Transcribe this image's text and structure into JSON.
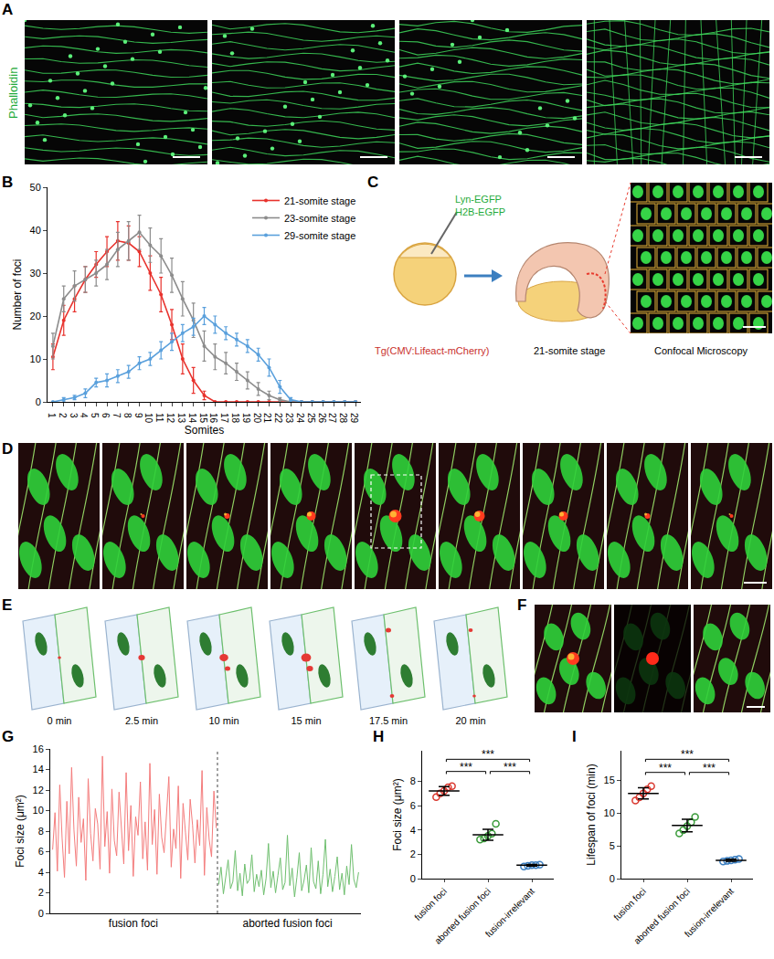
{
  "figure": {
    "panel_labels": [
      "A",
      "B",
      "C",
      "D",
      "E",
      "F",
      "G",
      "H",
      "I"
    ],
    "A": {
      "stain": "Phalloidin"
    },
    "C": {
      "injected": [
        "Lyn-EGFP",
        "H2B-EGFP"
      ],
      "line": "Tg(CMV:Lifeact-mCherry)",
      "stage": "21-somite stage",
      "method": "Confocal Microscopy"
    },
    "E": {
      "times": [
        "0 min",
        "2.5 min",
        "10 min",
        "15 min",
        "17.5 min",
        "20 min"
      ]
    }
  },
  "chart_data": [
    {
      "type": "line",
      "x_label": "Somites",
      "y_label": "Number of foci",
      "x": [
        1,
        2,
        3,
        4,
        5,
        6,
        7,
        8,
        9,
        10,
        11,
        12,
        13,
        14,
        15,
        16,
        17,
        18,
        19,
        20,
        21,
        22,
        23,
        24,
        25,
        26,
        27,
        28,
        29
      ],
      "xlim": [
        0.5,
        29.5
      ],
      "xticks": [
        1,
        2,
        3,
        4,
        5,
        6,
        7,
        8,
        9,
        10,
        11,
        12,
        13,
        14,
        15,
        16,
        17,
        18,
        19,
        20,
        21,
        22,
        23,
        24,
        25,
        26,
        27,
        28,
        29
      ],
      "ylim": [
        0,
        50
      ],
      "yticks": [
        0,
        10,
        20,
        30,
        40,
        50
      ],
      "legend": "top right",
      "marker": "circle",
      "series": [
        {
          "name": "21-somite stage",
          "color": "#e8322d",
          "values": [
            10.5,
            19,
            24,
            28.5,
            32,
            35,
            37.5,
            37,
            35,
            30,
            25,
            18,
            10,
            5,
            1.5,
            0,
            0,
            0,
            0,
            0,
            0,
            0,
            0,
            0,
            0,
            0,
            0,
            0,
            0
          ],
          "error": [
            3,
            3.5,
            3,
            3,
            3,
            3.5,
            4.5,
            4,
            3.5,
            4,
            4,
            3.5,
            3.5,
            3,
            1,
            0,
            0,
            0,
            0,
            0,
            0,
            0,
            0,
            0,
            0,
            0,
            0,
            0,
            0
          ]
        },
        {
          "name": "23-somite stage",
          "color": "#8c8c8c",
          "values": [
            13,
            24,
            27,
            28.5,
            30,
            32,
            35.5,
            37.5,
            39.5,
            36.5,
            34,
            29.5,
            24,
            19,
            13,
            10.5,
            9,
            7,
            5,
            3,
            1.5,
            0.5,
            0,
            0,
            0,
            0,
            0,
            0,
            0
          ],
          "error": [
            3,
            3,
            3.5,
            3,
            3,
            3.5,
            4,
            4.5,
            4,
            4,
            4,
            4,
            4,
            4,
            3.5,
            3,
            2.5,
            2,
            2,
            1.5,
            1,
            0.5,
            0,
            0,
            0,
            0,
            0,
            0,
            0
          ]
        },
        {
          "name": "29-somite stage",
          "color": "#5aa0dc",
          "values": [
            0,
            0.5,
            1,
            2,
            4.5,
            5,
            6,
            7,
            9,
            10,
            12,
            14,
            16,
            17.5,
            20,
            18,
            16,
            14.5,
            13,
            11,
            8,
            3.5,
            0.5,
            0,
            0,
            0,
            0,
            0,
            0
          ],
          "error": [
            0,
            0.5,
            0.5,
            1,
            1,
            1.5,
            1.5,
            1.5,
            1.5,
            1.5,
            2,
            2,
            2,
            2,
            2,
            2,
            1.5,
            1.5,
            1.5,
            1.5,
            2,
            1.5,
            0.5,
            0,
            0,
            0,
            0,
            0,
            0
          ]
        }
      ]
    },
    {
      "type": "line",
      "y_label": "Foci size (μm²)",
      "xlim": [
        0,
        131
      ],
      "xticks": [
        {
          "value": 35,
          "label": "fusion foci"
        },
        {
          "value": 100,
          "label": "aborted fusion foci"
        }
      ],
      "ylim": [
        0,
        16
      ],
      "yticks": [
        0,
        2,
        4,
        6,
        8,
        10,
        12,
        14,
        16
      ],
      "series": [
        {
          "name": "fusion foci",
          "color": "#f47c7c",
          "x": [
            1,
            2,
            3,
            4,
            5,
            6,
            7,
            8,
            9,
            10,
            11,
            12,
            13,
            14,
            15,
            16,
            17,
            18,
            19,
            20,
            21,
            22,
            23,
            24,
            25,
            26,
            27,
            28,
            29,
            30,
            31,
            32,
            33,
            34,
            35,
            36,
            37,
            38,
            39,
            40,
            41,
            42,
            43,
            44,
            45,
            46,
            47,
            48,
            49,
            50,
            51,
            52,
            53,
            54,
            55,
            56,
            57,
            58,
            59,
            60,
            61,
            62,
            63,
            64,
            65,
            66,
            67,
            68,
            69,
            70
          ],
          "values": [
            6.2,
            9.8,
            4.1,
            12.5,
            7.3,
            3.5,
            10.9,
            5.8,
            14.2,
            8.1,
            4.6,
            11.3,
            6.9,
            9.2,
            3.2,
            13.1,
            7.8,
            5.1,
            10.2,
            8.7,
            4.3,
            15.3,
            6.5,
            9.9,
            3.9,
            12.1,
            7.1,
            5.6,
            11.8,
            8.4,
            4.8,
            13.7,
            6.1,
            10.5,
            3.6,
            9.4,
            7.6,
            12.8,
            5.3,
            8.9,
            4.2,
            14.6,
            6.7,
            10.1,
            3.8,
            11.6,
            7.4,
            5.9,
            9.6,
            13.3,
            4.5,
            8.2,
            6.3,
            12.4,
            3.4,
            10.7,
            7.9,
            5.2,
            11.1,
            8.6,
            4.9,
            9.1,
            6.6,
            13.9,
            3.7,
            10.3,
            7.2,
            5.5,
            11.9,
            8.3
          ]
        },
        {
          "name": "aborted fusion foci",
          "color": "#6fbf6f",
          "x": [
            71,
            72,
            73,
            74,
            75,
            76,
            77,
            78,
            79,
            80,
            81,
            82,
            83,
            84,
            85,
            86,
            87,
            88,
            89,
            90,
            91,
            92,
            93,
            94,
            95,
            96,
            97,
            98,
            99,
            100,
            101,
            102,
            103,
            104,
            105,
            106,
            107,
            108,
            109,
            110,
            111,
            112,
            113,
            114,
            115,
            116,
            117,
            118,
            119,
            120,
            121,
            122,
            123,
            124,
            125,
            126,
            127,
            128,
            129,
            130
          ],
          "values": [
            2.8,
            4.5,
            1.9,
            3.6,
            5.2,
            2.4,
            3.1,
            6.1,
            2.2,
            3.9,
            1.7,
            4.8,
            2.9,
            3.3,
            5.7,
            2.1,
            3.8,
            2.6,
            4.2,
            1.8,
            3.4,
            6.8,
            2.5,
            4.1,
            2.0,
            3.7,
            5.4,
            2.3,
            3.0,
            7.6,
            2.7,
            4.4,
            1.6,
            3.5,
            5.9,
            2.2,
            3.2,
            4.7,
            2.0,
            6.4,
            3.1,
            2.4,
            5.1,
            1.9,
            3.8,
            7.2,
            2.6,
            4.3,
            2.1,
            3.6,
            5.5,
            2.3,
            3.9,
            1.8,
            4.6,
            2.8,
            6.7,
            3.3,
            2.5,
            4.0
          ]
        }
      ]
    },
    {
      "type": "dot",
      "y_label": "Foci size (μm²)",
      "categories": [
        "fusion foci",
        "aborted fusion foci",
        "fusion-irrelevant"
      ],
      "colors": [
        "#d9382f",
        "#3a9b3a",
        "#3c7fc0"
      ],
      "points": [
        [
          6.7,
          7.0,
          7.2,
          7.5,
          7.6
        ],
        [
          3.2,
          3.3,
          3.5,
          3.7,
          4.5
        ],
        [
          1.0,
          1.05,
          1.1,
          1.1,
          1.15
        ]
      ],
      "mean": [
        7.2,
        3.6,
        1.1
      ],
      "sd": [
        0.35,
        0.45,
        0.06
      ],
      "ylim": [
        0,
        10.5
      ],
      "yticks": [
        0,
        2,
        4,
        6,
        8
      ],
      "significance": [
        {
          "pair": [
            0,
            1
          ],
          "y": 8.8,
          "label": "***"
        },
        {
          "pair": [
            0,
            2
          ],
          "y": 9.8,
          "label": "***"
        },
        {
          "pair": [
            1,
            2
          ],
          "y": 8.8,
          "label": "***"
        }
      ]
    },
    {
      "type": "dot",
      "y_label": "Lifespan of foci (min)",
      "categories": [
        "fusion foci",
        "aborted fusion foci",
        "fusion-irrelevant"
      ],
      "colors": [
        "#d9382f",
        "#3a9b3a",
        "#3c7fc0"
      ],
      "points": [
        [
          11.9,
          12.4,
          13.0,
          13.6,
          14.1
        ],
        [
          6.9,
          7.4,
          8.0,
          8.6,
          9.4
        ],
        [
          2.6,
          2.7,
          2.8,
          2.9,
          3.0
        ]
      ],
      "mean": [
        13.0,
        8.1,
        2.8
      ],
      "sd": [
        0.85,
        0.95,
        0.15
      ],
      "ylim": [
        0,
        19.5
      ],
      "yticks": [
        0,
        5,
        10,
        15
      ],
      "significance": [
        {
          "pair": [
            0,
            1
          ],
          "y": 16.2,
          "label": "***"
        },
        {
          "pair": [
            0,
            2
          ],
          "y": 18.2,
          "label": "***"
        },
        {
          "pair": [
            1,
            2
          ],
          "y": 16.2,
          "label": "***"
        }
      ]
    }
  ]
}
